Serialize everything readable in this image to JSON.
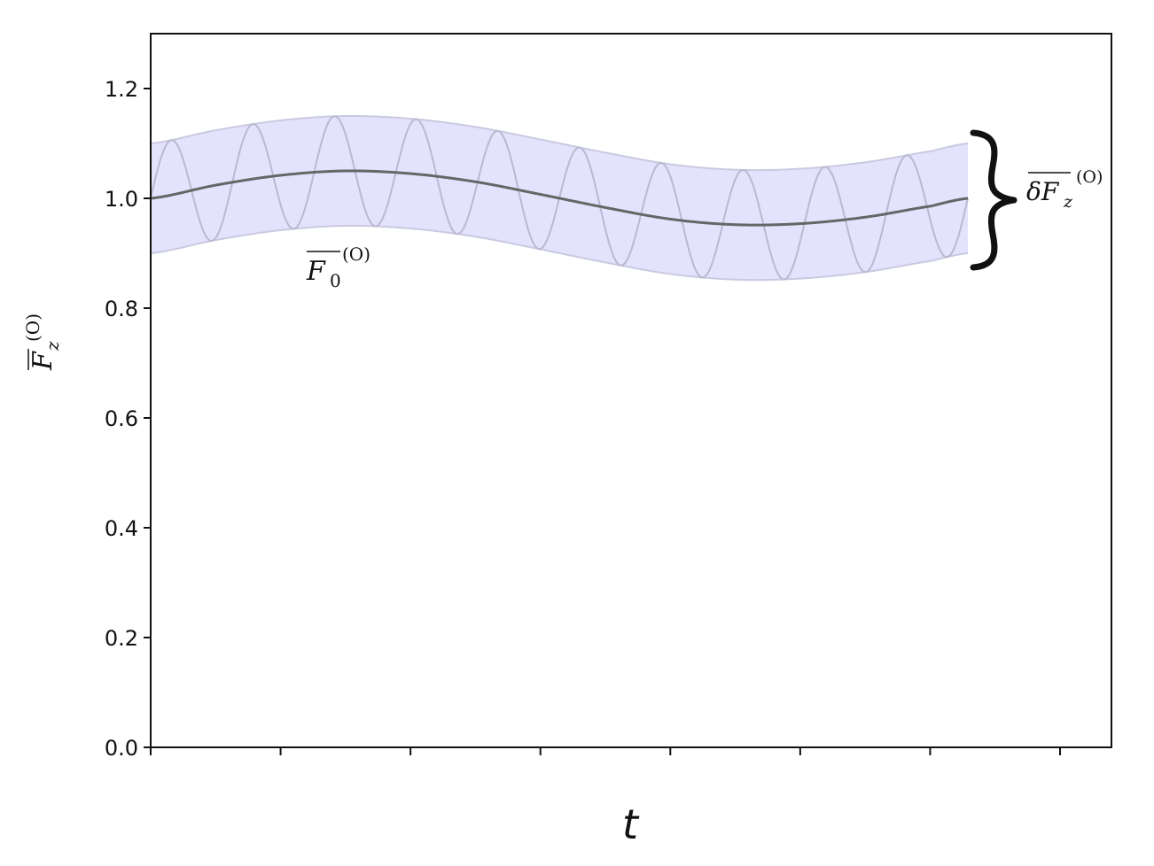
{
  "chart_data": {
    "type": "line",
    "xlabel": "t",
    "ylabel": {
      "base": "F",
      "sub": "z",
      "sup": "(O)"
    },
    "ylim": [
      0.0,
      1.3
    ],
    "yticks": [
      0.0,
      0.2,
      0.4,
      0.6,
      0.8,
      1.0,
      1.2
    ],
    "ytick_labels": [
      "0.0",
      "0.2",
      "0.4",
      "0.6",
      "0.8",
      "1.0",
      "1.2"
    ],
    "xticks_count": 8,
    "grid": false,
    "colors": {
      "band_fill": "#e3e3fd",
      "band_edge": "#c9c9e0",
      "mean_line": "#666666",
      "oscillation": "#b9b9cf"
    },
    "series": [
      {
        "role": "mean",
        "x": [
          0,
          0.5,
          1.0,
          1.5,
          2.0,
          2.5,
          3.0,
          3.5,
          4.0,
          4.5,
          5.0,
          5.5,
          6.0,
          6.28
        ],
        "values": [
          1.0,
          1.024,
          1.042,
          1.05,
          1.045,
          1.03,
          1.007,
          0.983,
          0.962,
          0.952,
          0.954,
          0.966,
          0.986,
          1.0
        ]
      },
      {
        "role": "oscillation",
        "amplitude": 0.1,
        "cycles": 10
      }
    ],
    "annotations": {
      "mean_label": {
        "base": "F",
        "sub": "0",
        "sup": "(O)"
      },
      "band_label": {
        "base": "δF",
        "sub": "z",
        "sup": "(O)"
      }
    }
  }
}
